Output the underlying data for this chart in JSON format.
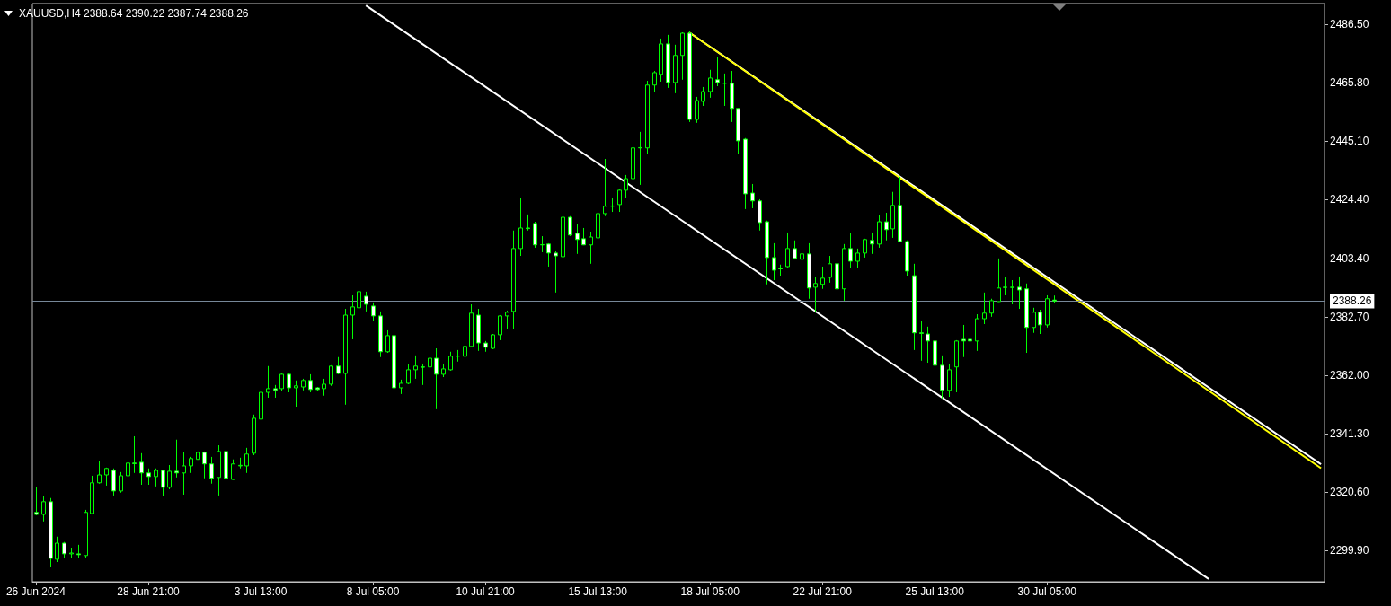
{
  "chart_data": {
    "type": "candlestick",
    "title": "XAUUSD,H4 2388.64 2390.22 2387.74 2388.26",
    "categories": [
      "26 Jun 2024",
      null,
      null,
      null,
      null,
      null,
      null,
      null,
      null,
      null,
      null,
      null,
      null,
      null,
      null,
      null,
      "28 Jun 21:00",
      null,
      null,
      null,
      null,
      null,
      null,
      null,
      null,
      null,
      null,
      null,
      null,
      null,
      null,
      null,
      "3 Jul 13:00",
      null,
      null,
      null,
      null,
      null,
      null,
      null,
      null,
      null,
      null,
      null,
      null,
      null,
      null,
      null,
      "8 Jul 05:00",
      null,
      null,
      null,
      null,
      null,
      null,
      null,
      null,
      null,
      null,
      null,
      null,
      null,
      null,
      null,
      "10 Jul 21:00",
      null,
      null,
      null,
      null,
      null,
      null,
      null,
      null,
      null,
      null,
      null,
      null,
      null,
      null,
      null,
      "15 Jul 13:00",
      null,
      null,
      null,
      null,
      null,
      null,
      null,
      null,
      null,
      null,
      null,
      null,
      null,
      null,
      null,
      "18 Jul 05:00",
      null,
      null,
      null,
      null,
      null,
      null,
      null,
      null,
      null,
      null,
      null,
      null,
      null,
      null,
      null,
      "22 Jul 21:00",
      null,
      null,
      null,
      null,
      null,
      null,
      null,
      null,
      null,
      null,
      null,
      null,
      null,
      null,
      null,
      "25 Jul 13:00",
      null,
      null,
      null,
      null,
      null,
      null,
      null,
      null,
      null,
      null,
      null,
      null,
      null,
      null,
      null,
      "30 Jul 05:00",
      null,
      null,
      null,
      null,
      null,
      null,
      null,
      null,
      null,
      null,
      null,
      null,
      null,
      null,
      null,
      null,
      null,
      null,
      null,
      null,
      null,
      null,
      null,
      null,
      null,
      null,
      null,
      null,
      null,
      null,
      null,
      null,
      null,
      null,
      null,
      null,
      null,
      null,
      null
    ],
    "series": [
      {
        "color": "#00ff00",
        "ohlc": [
          [
            2313.3,
            2322.2,
            2312.3,
            2312.6
          ],
          [
            2312.6,
            2319.0,
            2310.1,
            2317.1
          ],
          [
            2317.1,
            2318.4,
            2293.8,
            2297.0
          ],
          [
            2296.7,
            2304.7,
            2295.7,
            2302.4
          ],
          [
            2302.4,
            2302.8,
            2297.3,
            2298.6
          ],
          [
            2298.6,
            2300.8,
            2297.0,
            2298.9
          ],
          [
            2298.6,
            2301.8,
            2297.3,
            2298.3
          ],
          [
            2298.0,
            2314.2,
            2297.0,
            2313.3
          ],
          [
            2312.9,
            2326.3,
            2312.6,
            2323.8
          ],
          [
            2323.8,
            2331.4,
            2323.5,
            2326.6
          ],
          [
            2326.6,
            2329.2,
            2322.8,
            2328.9
          ],
          [
            2328.2,
            2328.9,
            2319.3,
            2320.9
          ],
          [
            2320.9,
            2327.6,
            2320.3,
            2326.3
          ],
          [
            2326.3,
            2332.4,
            2325.0,
            2330.8
          ],
          [
            2330.8,
            2340.3,
            2327.3,
            2330.6
          ],
          [
            2331.1,
            2334.3,
            2323.1,
            2327.3
          ],
          [
            2327.3,
            2328.9,
            2323.1,
            2326.0
          ],
          [
            2326.0,
            2328.9,
            2322.5,
            2328.2
          ],
          [
            2328.2,
            2328.3,
            2319.0,
            2322.2
          ],
          [
            2322.2,
            2330.1,
            2321.5,
            2327.9
          ],
          [
            2327.9,
            2339.1,
            2325.7,
            2327.3
          ],
          [
            2327.3,
            2334.6,
            2319.6,
            2329.8
          ],
          [
            2329.8,
            2333.0,
            2327.3,
            2332.4
          ],
          [
            2332.1,
            2334.9,
            2332.0,
            2334.6
          ],
          [
            2334.6,
            2334.9,
            2325.4,
            2330.5
          ],
          [
            2330.5,
            2333.0,
            2323.5,
            2325.4
          ],
          [
            2325.7,
            2337.1,
            2319.3,
            2334.9
          ],
          [
            2334.9,
            2335.6,
            2321.2,
            2325.4
          ],
          [
            2325.0,
            2332.1,
            2324.9,
            2330.5
          ],
          [
            2329.8,
            2332.7,
            2328.9,
            2330.0
          ],
          [
            2329.8,
            2336.2,
            2327.3,
            2334.0
          ],
          [
            2334.3,
            2348.0,
            2333.6,
            2346.7
          ],
          [
            2346.4,
            2359.1,
            2343.2,
            2355.9
          ],
          [
            2355.9,
            2365.2,
            2354.0,
            2357.2
          ],
          [
            2357.2,
            2358.5,
            2354.0,
            2356.6
          ],
          [
            2357.2,
            2362.9,
            2356.3,
            2362.3
          ],
          [
            2362.3,
            2362.6,
            2355.9,
            2357.5
          ],
          [
            2357.5,
            2360.1,
            2350.8,
            2358.2
          ],
          [
            2357.8,
            2360.7,
            2356.6,
            2360.1
          ],
          [
            2360.1,
            2362.3,
            2355.9,
            2356.9
          ],
          [
            2357.5,
            2357.8,
            2356.3,
            2356.9
          ],
          [
            2357.2,
            2360.7,
            2354.7,
            2358.8
          ],
          [
            2358.8,
            2365.5,
            2358.2,
            2365.2
          ],
          [
            2365.2,
            2368.4,
            2362.3,
            2362.6
          ],
          [
            2362.6,
            2385.5,
            2351.5,
            2383.3
          ],
          [
            2383.3,
            2390.3,
            2374.7,
            2386.2
          ],
          [
            2385.9,
            2393.2,
            2385.2,
            2391.6
          ],
          [
            2390.0,
            2391.6,
            2384.6,
            2387.1
          ],
          [
            2386.5,
            2387.8,
            2381.1,
            2383.0
          ],
          [
            2383.0,
            2384.6,
            2368.4,
            2370.3
          ],
          [
            2370.3,
            2377.9,
            2369.9,
            2376.0
          ],
          [
            2376.0,
            2379.8,
            2351.2,
            2357.5
          ],
          [
            2357.5,
            2360.4,
            2355.3,
            2359.1
          ],
          [
            2359.1,
            2365.8,
            2358.8,
            2363.9
          ],
          [
            2363.9,
            2369.0,
            2360.7,
            2365.2
          ],
          [
            2364.9,
            2366.1,
            2358.5,
            2364.8
          ],
          [
            2364.9,
            2369.0,
            2356.3,
            2368.0
          ],
          [
            2368.0,
            2371.5,
            2349.9,
            2362.3
          ],
          [
            2362.3,
            2366.1,
            2361.3,
            2364.2
          ],
          [
            2363.9,
            2370.3,
            2363.6,
            2368.7
          ],
          [
            2368.7,
            2370.9,
            2366.8,
            2368.8
          ],
          [
            2368.7,
            2375.4,
            2367.4,
            2372.2
          ],
          [
            2372.2,
            2387.1,
            2371.9,
            2384.0
          ],
          [
            2383.3,
            2385.5,
            2370.6,
            2373.4
          ],
          [
            2373.4,
            2374.1,
            2370.3,
            2371.9
          ],
          [
            2371.5,
            2376.6,
            2371.2,
            2376.3
          ],
          [
            2376.3,
            2383.3,
            2374.4,
            2383.0
          ],
          [
            2383.0,
            2384.9,
            2378.5,
            2384.3
          ],
          [
            2384.6,
            2413.3,
            2378.2,
            2406.9
          ],
          [
            2406.9,
            2424.7,
            2404.3,
            2414.2
          ],
          [
            2414.2,
            2419.0,
            2413.3,
            2414.0
          ],
          [
            2415.8,
            2416.4,
            2407.2,
            2408.2
          ],
          [
            2408.2,
            2411.3,
            2405.6,
            2408.3
          ],
          [
            2408.5,
            2408.8,
            2400.5,
            2405.3
          ],
          [
            2405.3,
            2405.9,
            2391.3,
            2404.3
          ],
          [
            2404.0,
            2418.7,
            2403.9,
            2418.0
          ],
          [
            2418.0,
            2418.4,
            2411.3,
            2411.7
          ],
          [
            2412.3,
            2415.5,
            2405.0,
            2410.1
          ],
          [
            2410.4,
            2414.2,
            2408.1,
            2408.2
          ],
          [
            2408.2,
            2412.9,
            2401.5,
            2411.0
          ],
          [
            2410.7,
            2421.2,
            2410.6,
            2419.3
          ],
          [
            2419.3,
            2438.7,
            2418.4,
            2421.9
          ],
          [
            2421.9,
            2425.0,
            2419.9,
            2422.0
          ],
          [
            2422.5,
            2427.9,
            2419.9,
            2427.6
          ],
          [
            2427.6,
            2433.0,
            2425.0,
            2431.7
          ],
          [
            2431.7,
            2443.5,
            2428.2,
            2442.6
          ],
          [
            2442.6,
            2448.3,
            2429.5,
            2442.7
          ],
          [
            2442.6,
            2466.4,
            2440.6,
            2464.9
          ],
          [
            2464.9,
            2469.9,
            2462.3,
            2469.3
          ],
          [
            2468.7,
            2481.4,
            2466.1,
            2479.5
          ],
          [
            2479.5,
            2482.7,
            2463.9,
            2465.8
          ],
          [
            2465.8,
            2479.2,
            2462.0,
            2475.4
          ],
          [
            2475.4,
            2483.6,
            2466.8,
            2483.3
          ],
          [
            2483.3,
            2484.0,
            2451.8,
            2452.7
          ],
          [
            2452.7,
            2460.7,
            2451.5,
            2459.4
          ],
          [
            2459.1,
            2464.2,
            2457.5,
            2462.6
          ],
          [
            2462.6,
            2470.3,
            2460.4,
            2467.4
          ],
          [
            2466.8,
            2475.0,
            2464.5,
            2465.8
          ],
          [
            2465.6,
            2469.0,
            2457.5,
            2465.5
          ],
          [
            2465.5,
            2469.9,
            2451.8,
            2456.6
          ],
          [
            2456.6,
            2456.7,
            2440.3,
            2445.1
          ],
          [
            2445.7,
            2446.1,
            2420.9,
            2426.3
          ],
          [
            2426.6,
            2429.8,
            2421.2,
            2423.8
          ],
          [
            2423.8,
            2424.4,
            2413.3,
            2416.1
          ],
          [
            2416.4,
            2416.8,
            2394.2,
            2403.7
          ],
          [
            2403.7,
            2408.8,
            2395.7,
            2399.2
          ],
          [
            2399.9,
            2401.2,
            2397.3,
            2399.7
          ],
          [
            2400.5,
            2412.6,
            2400.2,
            2406.9
          ],
          [
            2406.9,
            2409.8,
            2403.1,
            2403.4
          ],
          [
            2403.1,
            2405.9,
            2399.2,
            2405.0
          ],
          [
            2405.0,
            2408.8,
            2389.1,
            2392.9
          ],
          [
            2393.2,
            2396.7,
            2384.3,
            2394.5
          ],
          [
            2394.2,
            2400.5,
            2392.6,
            2396.4
          ],
          [
            2396.7,
            2404.3,
            2394.8,
            2401.5
          ],
          [
            2401.5,
            2402.7,
            2391.0,
            2392.6
          ],
          [
            2392.6,
            2408.5,
            2388.4,
            2406.9
          ],
          [
            2406.9,
            2412.3,
            2399.9,
            2402.4
          ],
          [
            2402.4,
            2406.9,
            2399.9,
            2405.3
          ],
          [
            2405.3,
            2410.4,
            2403.7,
            2410.1
          ],
          [
            2409.8,
            2412.6,
            2405.0,
            2408.5
          ],
          [
            2408.5,
            2418.7,
            2407.2,
            2416.4
          ],
          [
            2416.4,
            2419.6,
            2409.8,
            2413.6
          ],
          [
            2413.9,
            2427.0,
            2410.7,
            2422.2
          ],
          [
            2422.2,
            2432.4,
            2409.1,
            2409.4
          ],
          [
            2409.4,
            2409.8,
            2397.3,
            2398.9
          ],
          [
            2397.3,
            2401.5,
            2370.9,
            2377.0
          ],
          [
            2377.0,
            2381.1,
            2367.1,
            2376.8
          ],
          [
            2376.6,
            2379.2,
            2366.4,
            2374.1
          ],
          [
            2374.1,
            2383.0,
            2362.3,
            2365.5
          ],
          [
            2365.5,
            2369.0,
            2353.7,
            2356.6
          ],
          [
            2356.6,
            2365.8,
            2354.3,
            2363.9
          ],
          [
            2364.9,
            2374.4,
            2355.9,
            2374.1
          ],
          [
            2374.7,
            2379.8,
            2368.4,
            2374.1
          ],
          [
            2374.7,
            2374.8,
            2365.5,
            2374.1
          ],
          [
            2374.1,
            2383.6,
            2370.6,
            2382.0
          ],
          [
            2382.0,
            2391.3,
            2380.1,
            2384.0
          ],
          [
            2384.0,
            2389.1,
            2382.7,
            2388.4
          ],
          [
            2388.1,
            2403.4,
            2388.0,
            2392.9
          ],
          [
            2393.2,
            2396.7,
            2390.3,
            2393.1
          ],
          [
            2393.1,
            2395.7,
            2387.1,
            2393.2
          ],
          [
            2393.2,
            2397.0,
            2385.5,
            2392.2
          ],
          [
            2392.6,
            2394.5,
            2369.9,
            2378.9
          ],
          [
            2378.9,
            2385.9,
            2377.0,
            2384.3
          ],
          [
            2384.3,
            2385.2,
            2376.6,
            2379.8
          ],
          [
            2379.8,
            2390.3,
            2378.9,
            2389.1
          ],
          [
            2388.64,
            2390.22,
            2387.74,
            2388.26
          ],
          null,
          null,
          null,
          null,
          null,
          null,
          null,
          null,
          null,
          null,
          null,
          null,
          null,
          null,
          null,
          null,
          null,
          null,
          null,
          null,
          null,
          null,
          null,
          null,
          null,
          null,
          null,
          null,
          null,
          null,
          null,
          null,
          null,
          null,
          null,
          null,
          null,
          null
        ]
      },
      {
        "type": "line",
        "color": "#ffffff",
        "values": [
          null,
          null,
          null,
          null,
          null,
          null,
          null,
          null,
          null,
          null,
          null,
          null,
          null,
          null,
          null,
          null,
          null,
          null,
          null,
          null,
          null,
          null,
          null,
          null,
          null,
          null,
          null,
          null,
          null,
          null,
          null,
          null,
          null,
          null,
          null,
          null,
          null,
          null,
          null,
          null,
          null,
          null,
          null,
          null,
          null,
          null,
          null,
          2493.1,
          null,
          null,
          null,
          null,
          null,
          null,
          null,
          null,
          null,
          null,
          null,
          null,
          null,
          null,
          null,
          null,
          null,
          null,
          null,
          null,
          null,
          null,
          null,
          null,
          null,
          null,
          null,
          null,
          null,
          null,
          null,
          null,
          null,
          null,
          null,
          null,
          null,
          null,
          null,
          null,
          null,
          null,
          null,
          null,
          null,
          null,
          null,
          null,
          null,
          null,
          null,
          null,
          null,
          null,
          null,
          null,
          null,
          null,
          null,
          null,
          null,
          null,
          null,
          null,
          null,
          null,
          null,
          null,
          null,
          null,
          null,
          null,
          null,
          null,
          null,
          null,
          null,
          null,
          null,
          null,
          null,
          null,
          null,
          null,
          null,
          null,
          null,
          null,
          null,
          null,
          null,
          null,
          null,
          null,
          null,
          null,
          null,
          null,
          null,
          null,
          null,
          null,
          null,
          null,
          null,
          null,
          null,
          null,
          null,
          null,
          null,
          null,
          null,
          null,
          null,
          null,
          null,
          null,
          null,
          2289.7,
          null,
          null,
          null,
          null,
          null,
          null,
          null,
          null,
          null,
          null,
          null,
          null,
          null,
          null,
          null,
          null
        ]
      },
      {
        "type": "line",
        "color": "#ffffff",
        "values": [
          null,
          null,
          null,
          null,
          null,
          null,
          null,
          null,
          null,
          null,
          null,
          null,
          null,
          null,
          null,
          null,
          null,
          null,
          null,
          null,
          null,
          null,
          null,
          null,
          null,
          null,
          null,
          null,
          null,
          null,
          null,
          null,
          null,
          null,
          null,
          null,
          null,
          null,
          null,
          null,
          null,
          null,
          null,
          null,
          null,
          null,
          null,
          null,
          null,
          null,
          null,
          null,
          null,
          null,
          null,
          null,
          null,
          null,
          null,
          null,
          null,
          null,
          null,
          null,
          null,
          null,
          null,
          null,
          null,
          null,
          null,
          null,
          null,
          null,
          null,
          null,
          null,
          null,
          null,
          null,
          null,
          null,
          null,
          null,
          null,
          null,
          null,
          null,
          null,
          null,
          null,
          null,
          null,
          2483.6,
          null,
          null,
          null,
          null,
          null,
          null,
          null,
          null,
          null,
          null,
          null,
          null,
          null,
          null,
          null,
          null,
          null,
          null,
          null,
          null,
          null,
          null,
          null,
          null,
          null,
          null,
          null,
          null,
          null,
          null,
          null,
          null,
          null,
          null,
          null,
          null,
          null,
          null,
          null,
          null,
          null,
          null,
          null,
          null,
          null,
          null,
          null,
          null,
          null,
          null,
          null,
          null,
          null,
          null,
          null,
          null,
          null,
          null,
          null,
          null,
          null,
          null,
          null,
          null,
          null,
          null,
          null,
          null,
          null,
          null,
          null,
          null,
          null,
          null,
          null,
          null,
          null,
          null,
          null,
          null,
          null,
          null,
          null,
          null,
          null,
          null,
          null,
          null,
          null,
          2330.4
        ]
      },
      {
        "type": "line",
        "color": "#ffff00",
        "values": [
          null,
          null,
          null,
          null,
          null,
          null,
          null,
          null,
          null,
          null,
          null,
          null,
          null,
          null,
          null,
          null,
          null,
          null,
          null,
          null,
          null,
          null,
          null,
          null,
          null,
          null,
          null,
          null,
          null,
          null,
          null,
          null,
          null,
          null,
          null,
          null,
          null,
          null,
          null,
          null,
          null,
          null,
          null,
          null,
          null,
          null,
          null,
          null,
          null,
          null,
          null,
          null,
          null,
          null,
          null,
          null,
          null,
          null,
          null,
          null,
          null,
          null,
          null,
          null,
          null,
          null,
          null,
          null,
          null,
          null,
          null,
          null,
          null,
          null,
          null,
          null,
          null,
          null,
          null,
          null,
          null,
          null,
          null,
          null,
          null,
          null,
          null,
          null,
          null,
          null,
          null,
          null,
          null,
          2483.6,
          null,
          null,
          null,
          null,
          null,
          null,
          null,
          null,
          null,
          null,
          null,
          null,
          null,
          null,
          null,
          null,
          null,
          null,
          null,
          null,
          null,
          null,
          null,
          null,
          null,
          null,
          null,
          null,
          null,
          null,
          null,
          null,
          null,
          null,
          null,
          null,
          null,
          null,
          null,
          null,
          null,
          null,
          null,
          null,
          null,
          null,
          null,
          null,
          null,
          null,
          null,
          null,
          null,
          null,
          null,
          null,
          null,
          null,
          null,
          null,
          null,
          null,
          null,
          null,
          null,
          null,
          null,
          null,
          null,
          null,
          null,
          null,
          null,
          null,
          null,
          null,
          null,
          null,
          null,
          null,
          null,
          null,
          null,
          null,
          null,
          null,
          null,
          null,
          null,
          2329.0
        ]
      }
    ],
    "ylim": [
      2288.7,
      2493.8
    ],
    "yticks": [
      {
        "value": 2299.9,
        "label": "2299.90"
      },
      {
        "value": 2320.6,
        "label": "2320.60"
      },
      {
        "value": 2341.3,
        "label": "2341.30"
      },
      {
        "value": 2362,
        "label": "2362.00"
      },
      {
        "value": 2382.7,
        "label": "2382.70"
      },
      {
        "value": 2403.4,
        "label": "2403.40"
      },
      {
        "value": 2424.4,
        "label": "2424.40"
      },
      {
        "value": 2445.1,
        "label": "2445.10"
      },
      {
        "value": 2465.8,
        "label": "2465.80"
      },
      {
        "value": 2486.5,
        "label": "2486.50"
      }
    ],
    "ref_lines": [
      {
        "axis": "y",
        "value": 2388.26,
        "label": "2388.26",
        "color": "#778899"
      }
    ],
    "grid": false
  }
}
